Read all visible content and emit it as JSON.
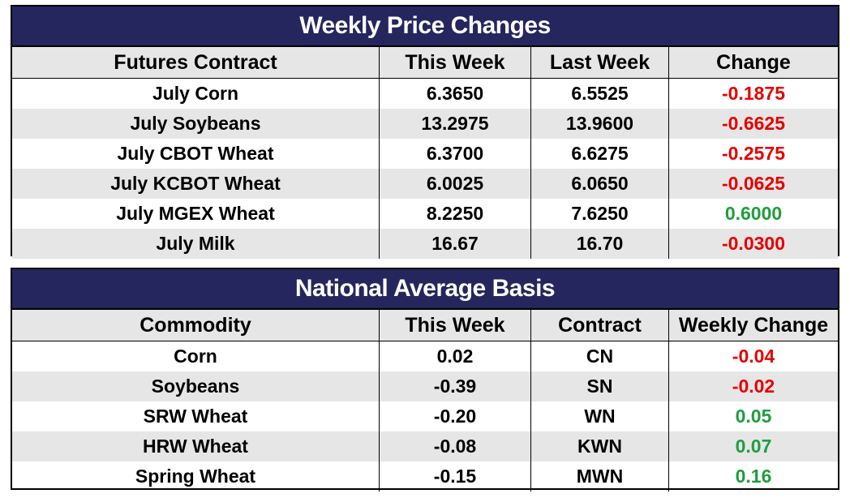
{
  "weekly_price_changes": {
    "title": "Weekly Price Changes",
    "headers": [
      "Futures Contract",
      "This Week",
      "Last Week",
      "Change"
    ],
    "rows": [
      [
        "July Corn",
        "6.3650",
        "6.5525",
        "-0.1875"
      ],
      [
        "July Soybeans",
        "13.2975",
        "13.9600",
        "-0.6625"
      ],
      [
        "July CBOT Wheat",
        "6.3700",
        "6.6275",
        "-0.2575"
      ],
      [
        "July KCBOT Wheat",
        "6.0025",
        "6.0650",
        "-0.0625"
      ],
      [
        "July MGEX Wheat",
        "8.2250",
        "7.6250",
        "0.6000"
      ],
      [
        "July Milk",
        "16.67",
        "16.70",
        "-0.0300"
      ]
    ]
  },
  "national_average_basis": {
    "title": "National Average Basis",
    "headers": [
      "Commodity",
      "This Week",
      "Contract",
      "Weekly Change"
    ],
    "rows": [
      [
        "Corn",
        "0.02",
        "CN",
        "-0.04"
      ],
      [
        "Soybeans",
        "-0.39",
        "SN",
        "-0.02"
      ],
      [
        "SRW Wheat",
        "-0.20",
        "WN",
        "0.05"
      ],
      [
        "HRW Wheat",
        "-0.08",
        "KWN",
        "0.07"
      ],
      [
        "Spring Wheat",
        "-0.15",
        "MWN",
        "0.16"
      ]
    ]
  },
  "colors": {
    "title_bg": "#25265e",
    "negative": "#e60000",
    "positive": "#1e9e3e",
    "alt_row": "#e6e6e6"
  }
}
